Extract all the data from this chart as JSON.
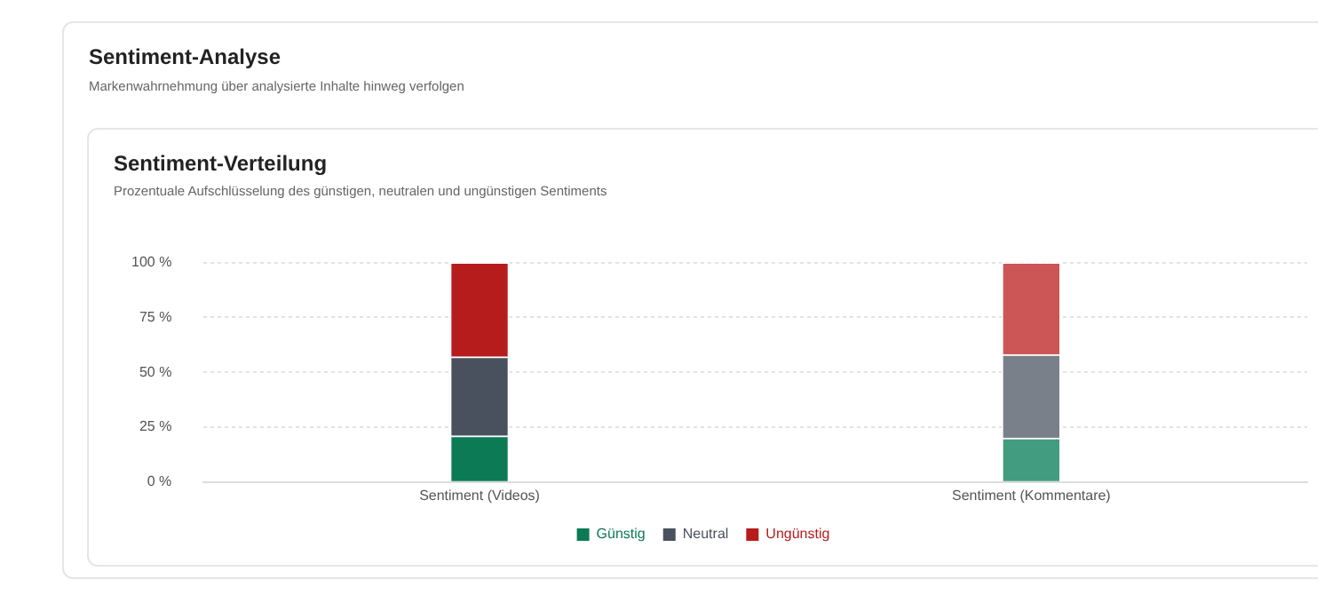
{
  "chart_data": {
    "type": "bar",
    "title": "Sentiment-Verteilung",
    "subtitle": "Prozentuale Aufschlüsselung des günstigen, neutralen und ungünstigen Sentiments",
    "annotations": [
      "Sentiment-Analyse",
      "Markenwahrnehmung über analysierte Inhalte hinweg verfolgen"
    ],
    "categories": [
      "Sentiment (Videos)",
      "Sentiment (Kommentare)"
    ],
    "series": [
      {
        "name": "Günstig",
        "color": "#0b7a55",
        "colors": [
          "#0b7a55",
          "#429c80"
        ],
        "values": [
          21,
          20
        ]
      },
      {
        "name": "Neutral",
        "color": "#4a515e",
        "colors": [
          "#4a515e",
          "#7a8089"
        ],
        "values": [
          36,
          38
        ]
      },
      {
        "name": "Ungünstig",
        "color": "#b71c1c",
        "colors": [
          "#b71c1c",
          "#cc5555"
        ],
        "values": [
          43,
          42
        ]
      }
    ],
    "stacked": true,
    "ylim": [
      0,
      100
    ],
    "yticks": [
      {
        "value": 0,
        "label": "0 %"
      },
      {
        "value": 25,
        "label": "25 %"
      },
      {
        "value": 50,
        "label": "50 %"
      },
      {
        "value": 75,
        "label": "75 %"
      },
      {
        "value": 100,
        "label": "100 %"
      }
    ],
    "grid": "y",
    "legend": "bottom"
  }
}
